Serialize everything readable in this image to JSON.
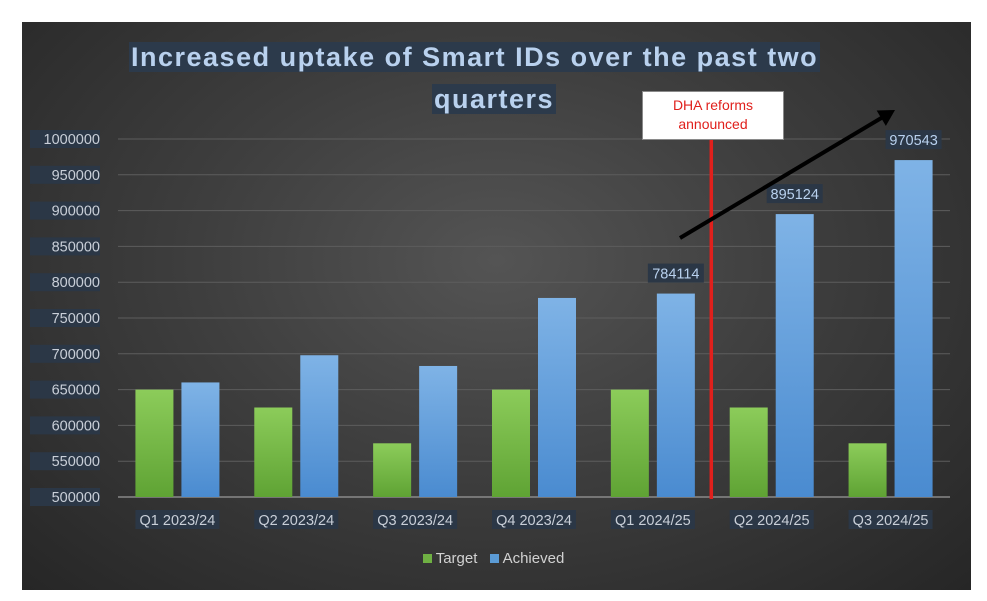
{
  "chart_data": {
    "type": "bar",
    "title": "Increased uptake of Smart IDs over the past two quarters",
    "title_lines": [
      "Increased uptake of Smart IDs over the past two",
      "quarters"
    ],
    "categories": [
      "Q1 2023/24",
      "Q2 2023/24",
      "Q3 2023/24",
      "Q4 2023/24",
      "Q1 2024/25",
      "Q2 2024/25",
      "Q3 2024/25"
    ],
    "series": [
      {
        "name": "Target",
        "color": "#6fb043",
        "values": [
          650000,
          625000,
          575000,
          650000,
          650000,
          625000,
          575000
        ]
      },
      {
        "name": "Achieved",
        "color": "#5b9bd5",
        "values": [
          660000,
          698000,
          683000,
          778000,
          784114,
          895124,
          970543
        ]
      }
    ],
    "data_labels": [
      {
        "category": "Q1 2024/25",
        "series": "Achieved",
        "text": "784114"
      },
      {
        "category": "Q2 2024/25",
        "series": "Achieved",
        "text": "895124"
      },
      {
        "category": "Q3 2024/25",
        "series": "Achieved",
        "text": "970543"
      }
    ],
    "y_ticks": [
      "500000",
      "550000",
      "600000",
      "650000",
      "700000",
      "750000",
      "800000",
      "850000",
      "900000",
      "950000",
      "1000000"
    ],
    "ylim": [
      500000,
      1000000
    ],
    "xlabel": "",
    "ylabel": "",
    "grid": true,
    "legend_position": "bottom",
    "annotations": {
      "callout": {
        "lines": [
          "DHA reforms",
          "announced"
        ],
        "color": "#e0201c"
      },
      "vertical_line": {
        "between": [
          "Q1 2024/25",
          "Q2 2024/25"
        ],
        "color": "#e0201c"
      },
      "trend_arrow": {
        "color": "#000000"
      }
    }
  }
}
